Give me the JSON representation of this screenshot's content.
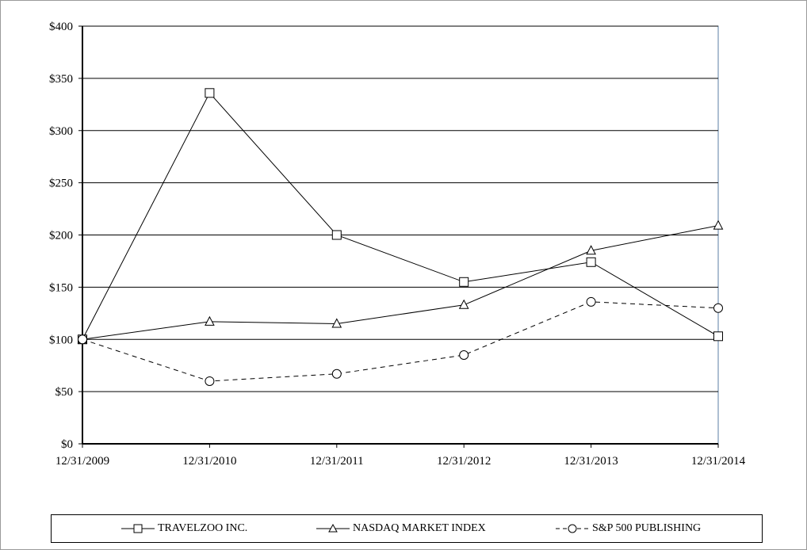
{
  "chart_data": {
    "type": "line",
    "title": "",
    "xlabel": "",
    "ylabel": "",
    "categories": [
      "12/31/2009",
      "12/31/2010",
      "12/31/2011",
      "12/31/2012",
      "12/31/2013",
      "12/31/2014"
    ],
    "y_ticks": [
      "$0",
      "$50",
      "$100",
      "$150",
      "$200",
      "$250",
      "$300",
      "$350",
      "$400"
    ],
    "ylim": [
      0,
      400
    ],
    "grid": "horizontal",
    "legend_position": "bottom",
    "series": [
      {
        "name": "TRAVELZOO INC.",
        "values": [
          100,
          336,
          200,
          155,
          174,
          103
        ],
        "marker": "square",
        "dash": "solid",
        "color": "#000000"
      },
      {
        "name": "NASDAQ MARKET INDEX",
        "values": [
          100,
          117,
          115,
          133,
          185,
          209
        ],
        "marker": "triangle",
        "dash": "solid",
        "color": "#000000"
      },
      {
        "name": "S&P 500 PUBLISHING",
        "values": [
          100,
          60,
          67,
          85,
          136,
          130
        ],
        "marker": "circle",
        "dash": "dashed",
        "color": "#000000"
      }
    ]
  }
}
